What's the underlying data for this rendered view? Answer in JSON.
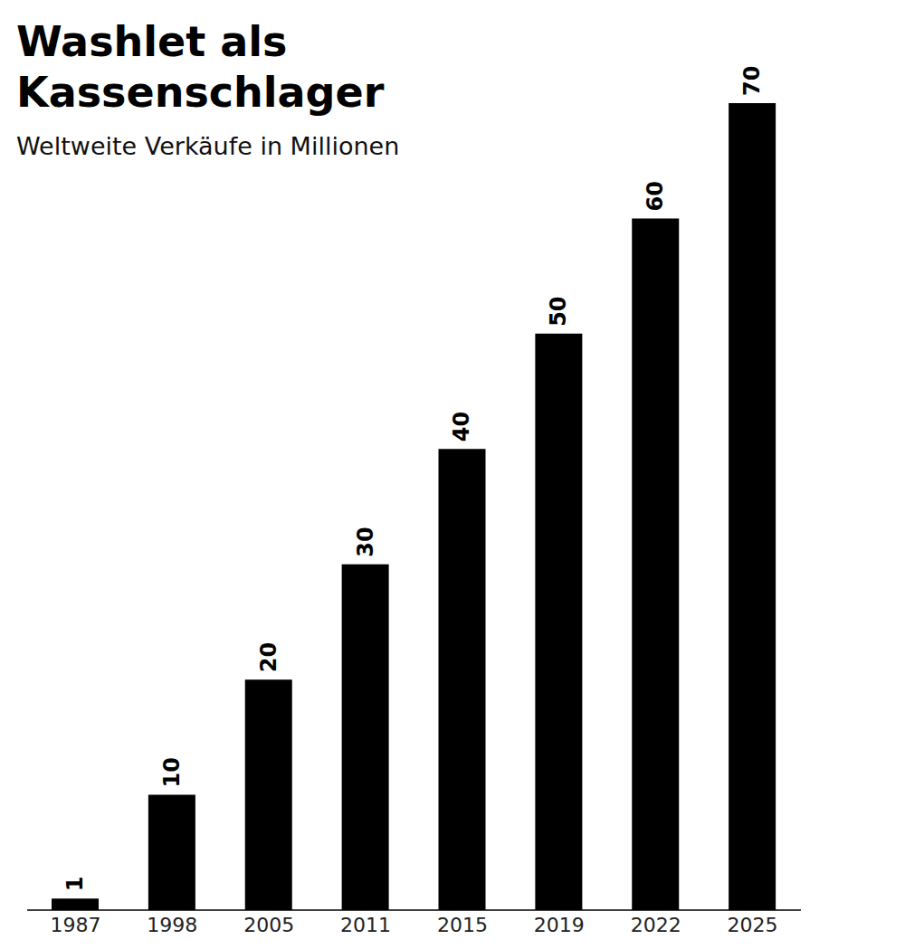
{
  "chart_data": {
    "type": "bar",
    "title": "Washlet als Kassenschlager",
    "subtitle": "Weltweite Verkäufe in Millionen",
    "categories": [
      "1987",
      "1998",
      "2005",
      "2011",
      "2015",
      "2019",
      "2022",
      "2025"
    ],
    "values": [
      1,
      10,
      20,
      30,
      40,
      50,
      60,
      70
    ],
    "color": "#000000",
    "ylim": [
      0,
      70
    ],
    "grid": false,
    "data_labels": true,
    "tick_labels": "x"
  }
}
